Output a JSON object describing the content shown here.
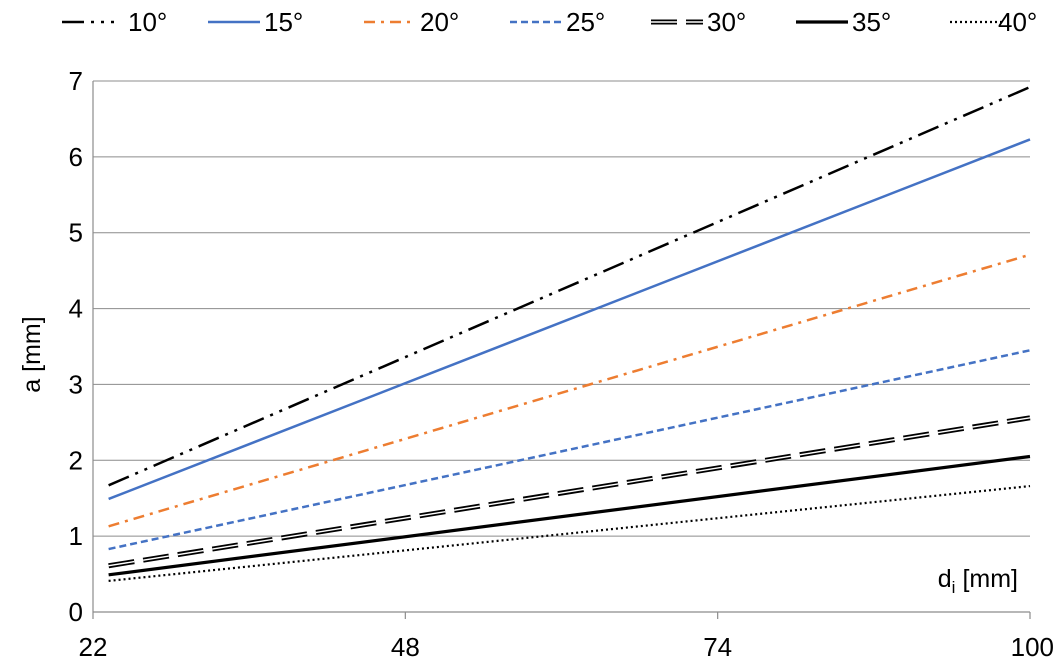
{
  "chart_data": {
    "type": "line",
    "title": "",
    "xlabel": "d",
    "xlabel_subscript": "i",
    "xlabel_unit": "[mm]",
    "ylabel": "a [mm]",
    "x_ticks": [
      "22",
      "48",
      "74",
      "100"
    ],
    "y_ticks": [
      "0",
      "1",
      "2",
      "3",
      "4",
      "5",
      "6",
      "7"
    ],
    "xlim": [
      22,
      100
    ],
    "ylim": [
      0,
      7
    ],
    "grid": "horizontal",
    "legend_position": "top",
    "series": [
      {
        "name": "10°",
        "color": "#000000",
        "dash": "dash-dot-dot",
        "x": [
          23.3,
          100
        ],
        "y": [
          1.67,
          6.92
        ]
      },
      {
        "name": "15°",
        "color": "#4472c4",
        "dash": "solid",
        "x": [
          23.3,
          100
        ],
        "y": [
          1.49,
          6.23
        ]
      },
      {
        "name": "20°",
        "color": "#ed7d31",
        "dash": "dash-dot",
        "x": [
          23.3,
          100
        ],
        "y": [
          1.13,
          4.71
        ]
      },
      {
        "name": "25°",
        "color": "#4472c4",
        "dash": "dash",
        "x": [
          23.3,
          100
        ],
        "y": [
          0.83,
          3.45
        ]
      },
      {
        "name": "30°",
        "color": "#000000",
        "dash": "long-dash-double",
        "x": [
          23.3,
          100
        ],
        "y": [
          0.61,
          2.56
        ]
      },
      {
        "name": "35°",
        "color": "#000000",
        "dash": "solid-thick",
        "x": [
          23.3,
          100
        ],
        "y": [
          0.49,
          2.05
        ]
      },
      {
        "name": "40°",
        "color": "#000000",
        "dash": "dot",
        "x": [
          23.3,
          100
        ],
        "y": [
          0.41,
          1.66
        ]
      }
    ]
  }
}
